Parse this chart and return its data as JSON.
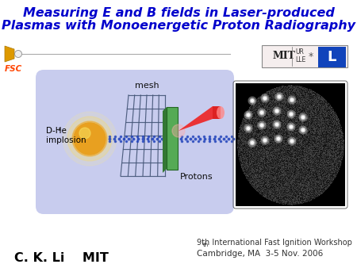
{
  "title_line1": "Measuring E and B fields in Laser-produced",
  "title_line2": "Plasmas with Monoenergetic Proton Radiography",
  "title_color": "#0000cc",
  "title_fontsize": 11.5,
  "fsc_label": "FSC",
  "fsc_color": "#ff4400",
  "dhe3_label1": "D-He",
  "dhe3_label2": "implosion",
  "mesh_label": "mesh",
  "protons_label": "Protons",
  "bottom_left": "C. K. Li    MIT",
  "bottom_right_line1": "9th International Fast Ignition Workshop",
  "bottom_right_line2": "Cambridge, MA  3-5 Nov. 2006",
  "bg_color": "#ffffff",
  "blue_box_color": "#c8ccee",
  "mesh_color": "#445577",
  "green_panel_color": "#55aa55",
  "proton_beam_color_outer": "#ff2222",
  "proton_beam_color_inner": "#ffaaaa",
  "proton_dots_color": "#2244bb"
}
